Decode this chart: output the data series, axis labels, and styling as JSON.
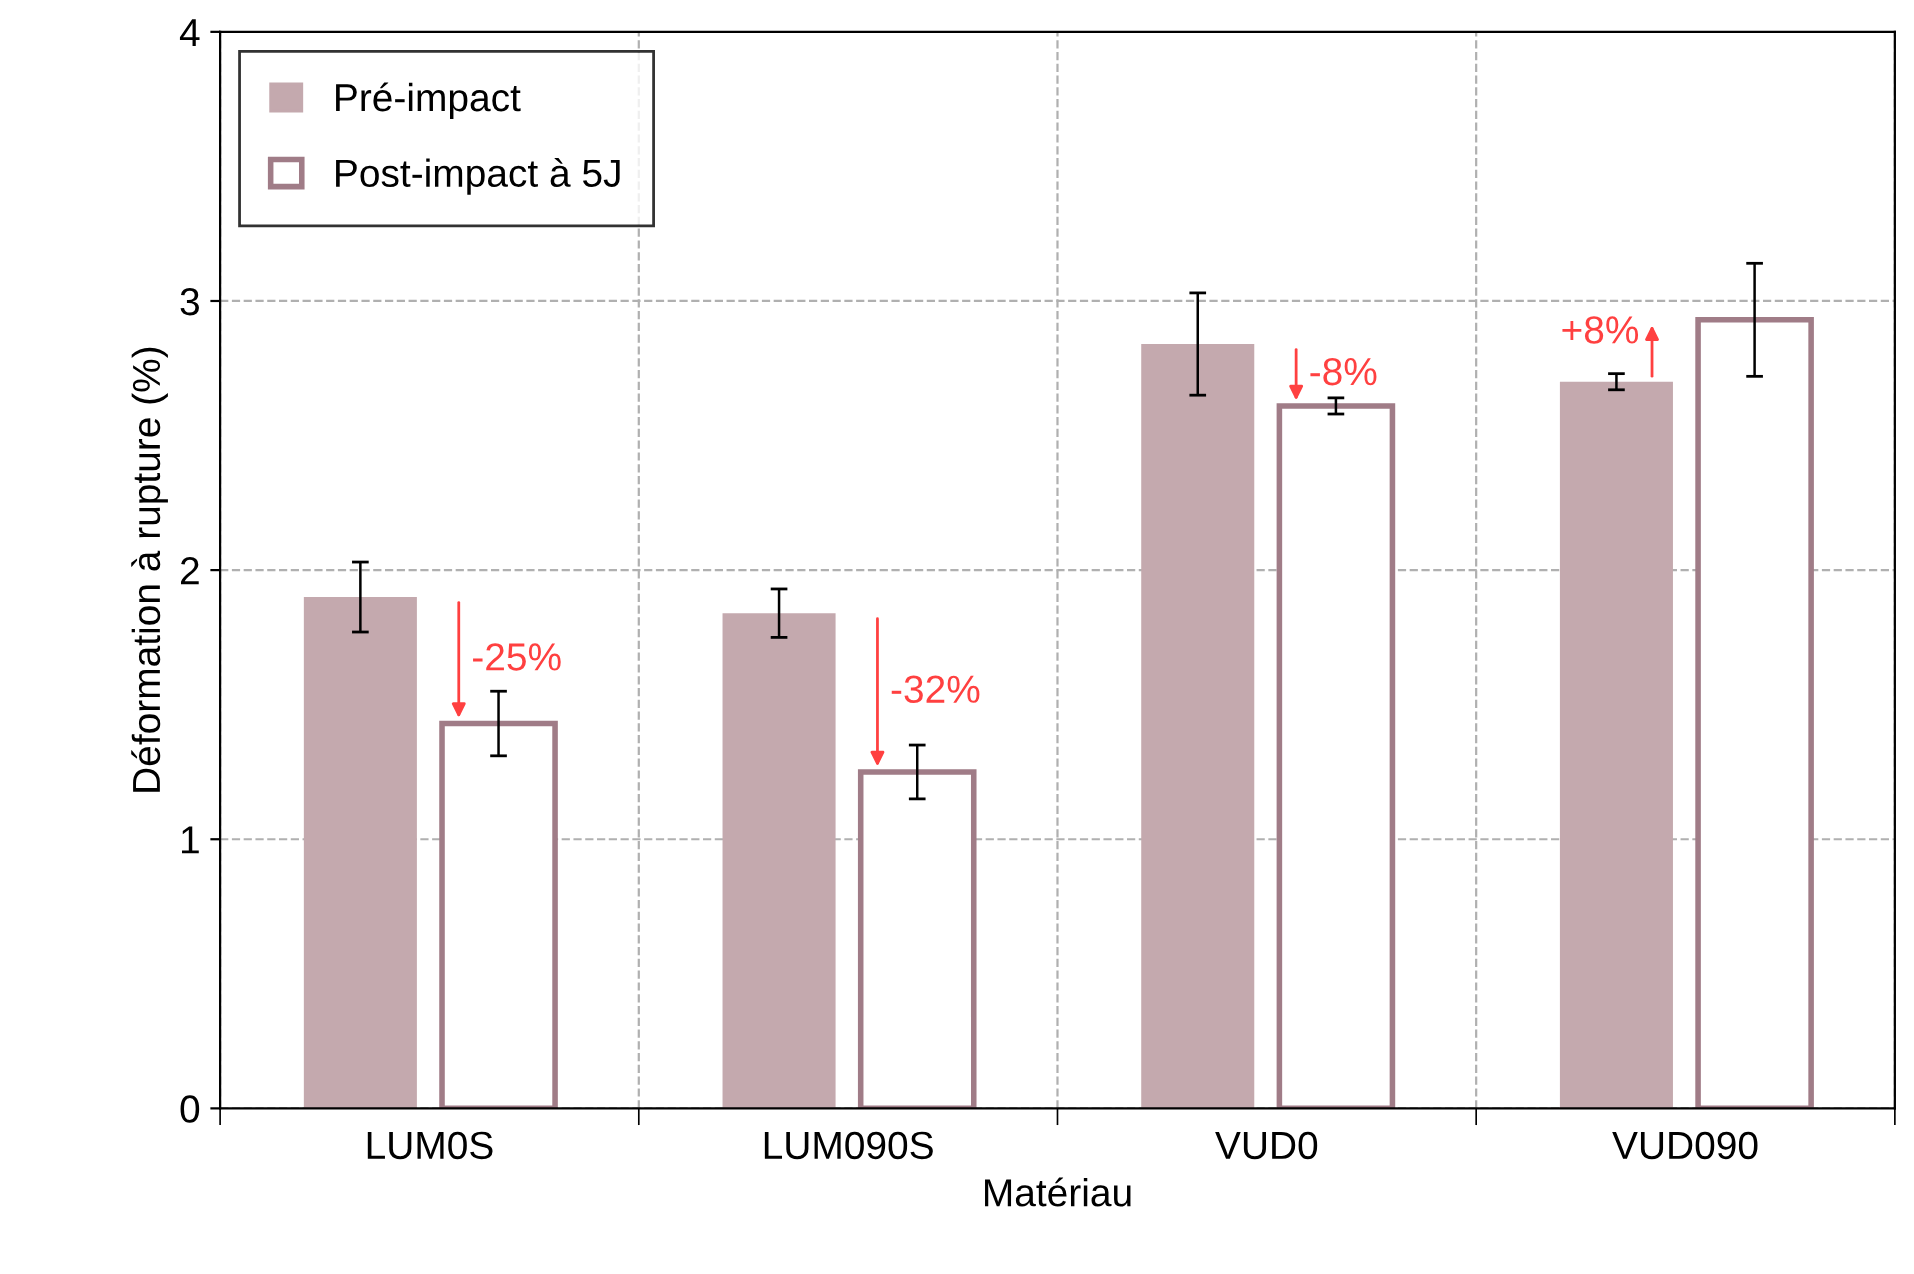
{
  "chart_data": {
    "type": "bar",
    "xlabel": "Matériau",
    "ylabel": "Déformation à rupture (%)",
    "categories": [
      "LUM0S",
      "LUM090S",
      "VUD0",
      "VUD090"
    ],
    "series": [
      {
        "name": "Pré-impact",
        "color": "#c4a9ae",
        "values": [
          1.9,
          1.84,
          2.84,
          2.7
        ],
        "errors": [
          0.13,
          0.09,
          0.19,
          0.03
        ]
      },
      {
        "name": "Post-impact à 5J",
        "color": "#a07c87",
        "values": [
          1.43,
          1.25,
          2.61,
          2.93
        ],
        "errors": [
          0.12,
          0.1,
          0.03,
          0.21
        ]
      }
    ],
    "ylim": [
      0,
      4
    ],
    "yticks": [
      0,
      1,
      2,
      3,
      4
    ],
    "grid": true,
    "legend": "top left",
    "annotations": [
      "-25%",
      "-32%",
      "-8%",
      "+8%"
    ]
  }
}
